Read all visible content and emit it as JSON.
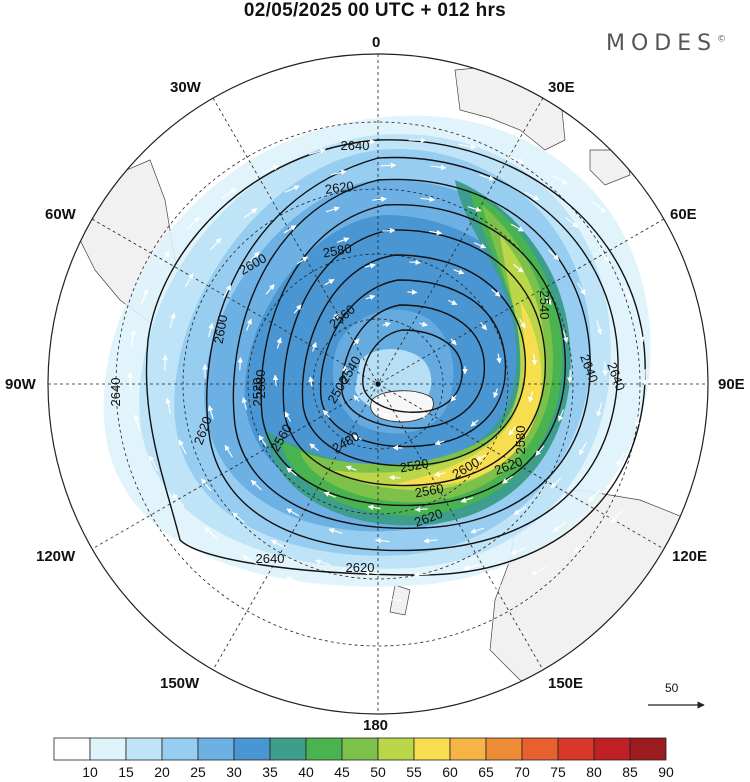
{
  "header": {
    "title": "02/05/2025  00 UTC  + 012 hrs",
    "brand": "MODES",
    "brand_mark": "©"
  },
  "map": {
    "projection": "south-polar-stereographic",
    "longitude_labels": {
      "top": "0",
      "bottom": "180",
      "left": "90W",
      "right": "90E",
      "n30w": "30W",
      "n30e": "30E",
      "n60w": "60W",
      "n60e": "60E",
      "n120w": "120W",
      "n120e": "120E",
      "n150w": "150W",
      "n150e": "150E"
    },
    "contour_field": "geopotential height (dam)",
    "contour_labels": [
      "2640",
      "2620",
      "2600",
      "2580",
      "2560",
      "2540",
      "2520",
      "2500",
      "2480",
      "2640",
      "2620",
      "2600",
      "2580",
      "2560",
      "2520",
      "2620",
      "2640",
      "2640",
      "2620",
      "2600",
      "2580",
      "2560",
      "2540",
      "2640",
      "2620"
    ],
    "reference_vector": {
      "label": "50"
    }
  },
  "colorbar": {
    "labels": [
      "10",
      "15",
      "20",
      "25",
      "30",
      "35",
      "40",
      "45",
      "50",
      "55",
      "60",
      "65",
      "70",
      "75",
      "80",
      "85",
      "90"
    ],
    "colors": [
      "#ffffff",
      "#dff3fb",
      "#bfe3f7",
      "#96cdf0",
      "#6cb0e4",
      "#4a96d2",
      "#3d9e8c",
      "#49b34f",
      "#7dc14a",
      "#bcd64a",
      "#f7de4f",
      "#f5b445",
      "#ee8b37",
      "#e8602d",
      "#d8382a",
      "#c01f26",
      "#9b1c1f"
    ]
  }
}
